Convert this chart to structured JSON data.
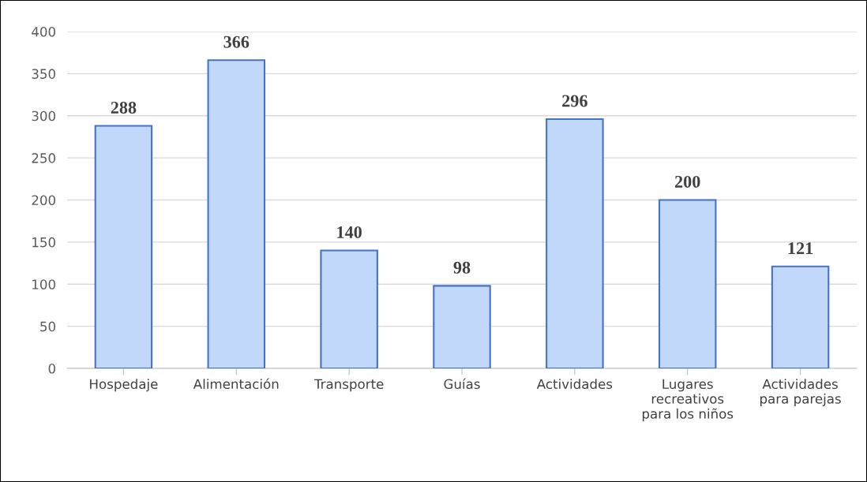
{
  "chart_data": {
    "type": "bar",
    "categories": [
      "Hospedaje",
      "Alimentación",
      "Transporte",
      "Guías",
      "Actividades",
      "Lugares recreativos para los niños",
      "Actividades para parejas"
    ],
    "values": [
      288,
      366,
      140,
      98,
      296,
      200,
      121
    ],
    "color": "#c2d8fb",
    "ylim": [
      0,
      400
    ],
    "yticks": [
      0,
      50,
      100,
      150,
      200,
      250,
      300,
      350,
      400
    ],
    "grid": "y",
    "data_labels": true
  }
}
